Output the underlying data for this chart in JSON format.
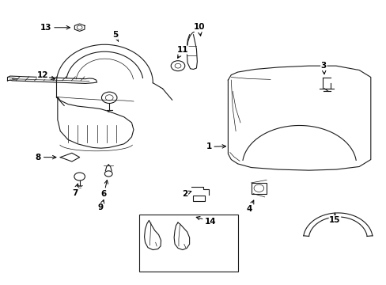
{
  "background_color": "#ffffff",
  "line_color": "#1a1a1a",
  "figsize": [
    4.89,
    3.6
  ],
  "dpi": 100,
  "label_positions": {
    "1": [
      0.555,
      0.485,
      0.598,
      0.485
    ],
    "2": [
      0.5,
      0.31,
      0.53,
      0.325
    ],
    "3": [
      0.84,
      0.76,
      0.84,
      0.72
    ],
    "4": [
      0.66,
      0.27,
      0.67,
      0.305
    ],
    "5": [
      0.31,
      0.875,
      0.32,
      0.845
    ],
    "6": [
      0.27,
      0.33,
      0.28,
      0.37
    ],
    "7": [
      0.195,
      0.33,
      0.205,
      0.365
    ],
    "8": [
      0.105,
      0.445,
      0.145,
      0.445
    ],
    "9": [
      0.275,
      0.27,
      0.28,
      0.31
    ],
    "10": [
      0.52,
      0.9,
      0.525,
      0.86
    ],
    "11": [
      0.49,
      0.82,
      0.51,
      0.79
    ],
    "12": [
      0.115,
      0.73,
      0.16,
      0.71
    ],
    "13": [
      0.135,
      0.905,
      0.188,
      0.905
    ],
    "14": [
      0.54,
      0.215,
      0.49,
      0.235
    ],
    "15": [
      0.87,
      0.23,
      0.87,
      0.265
    ]
  }
}
